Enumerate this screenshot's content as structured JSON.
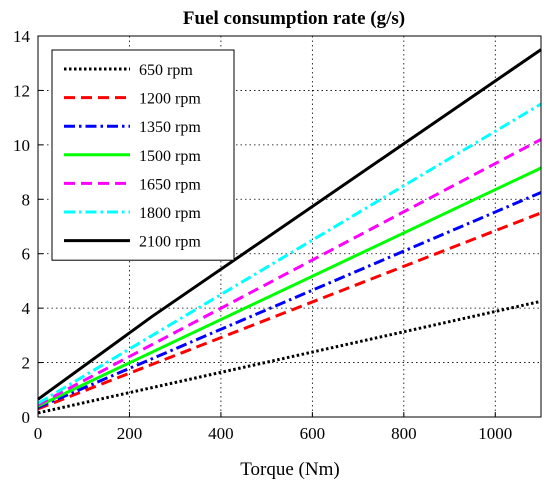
{
  "chart_data": {
    "type": "line",
    "title": "Fuel consumption rate (g/s)",
    "xlabel": "Torque (Nm)",
    "ylabel": "",
    "xlim": [
      0,
      1100
    ],
    "ylim": [
      0,
      14
    ],
    "xticks": [
      0,
      200,
      400,
      600,
      800,
      1000
    ],
    "yticks": [
      0,
      2,
      4,
      6,
      8,
      10,
      12,
      14
    ],
    "grid": "dotted",
    "legend_position": "top-left",
    "series": [
      {
        "name": "650 rpm",
        "color": "#000000",
        "style": "dotted",
        "points": [
          [
            0,
            0.15
          ],
          [
            1100,
            4.25
          ]
        ]
      },
      {
        "name": "1200 rpm",
        "color": "#ff0000",
        "style": "dashed",
        "points": [
          [
            0,
            0.3
          ],
          [
            1100,
            7.5
          ]
        ]
      },
      {
        "name": "1350 rpm",
        "color": "#0000ff",
        "style": "dash-dot",
        "points": [
          [
            0,
            0.35
          ],
          [
            1100,
            8.25
          ]
        ]
      },
      {
        "name": "1500 rpm",
        "color": "#00ff00",
        "style": "solid",
        "points": [
          [
            0,
            0.4
          ],
          [
            1100,
            9.15
          ]
        ]
      },
      {
        "name": "1650 rpm",
        "color": "#ff00ff",
        "style": "dashed",
        "points": [
          [
            0,
            0.45
          ],
          [
            1100,
            10.2
          ]
        ]
      },
      {
        "name": "1800 rpm",
        "color": "#00ffff",
        "style": "dash-dot",
        "points": [
          [
            0,
            0.5
          ],
          [
            1100,
            11.5
          ]
        ]
      },
      {
        "name": "2100 rpm",
        "color": "#000000",
        "style": "solid",
        "points": [
          [
            0,
            0.65
          ],
          [
            250,
            3.7
          ],
          [
            1100,
            13.5
          ]
        ]
      }
    ]
  }
}
